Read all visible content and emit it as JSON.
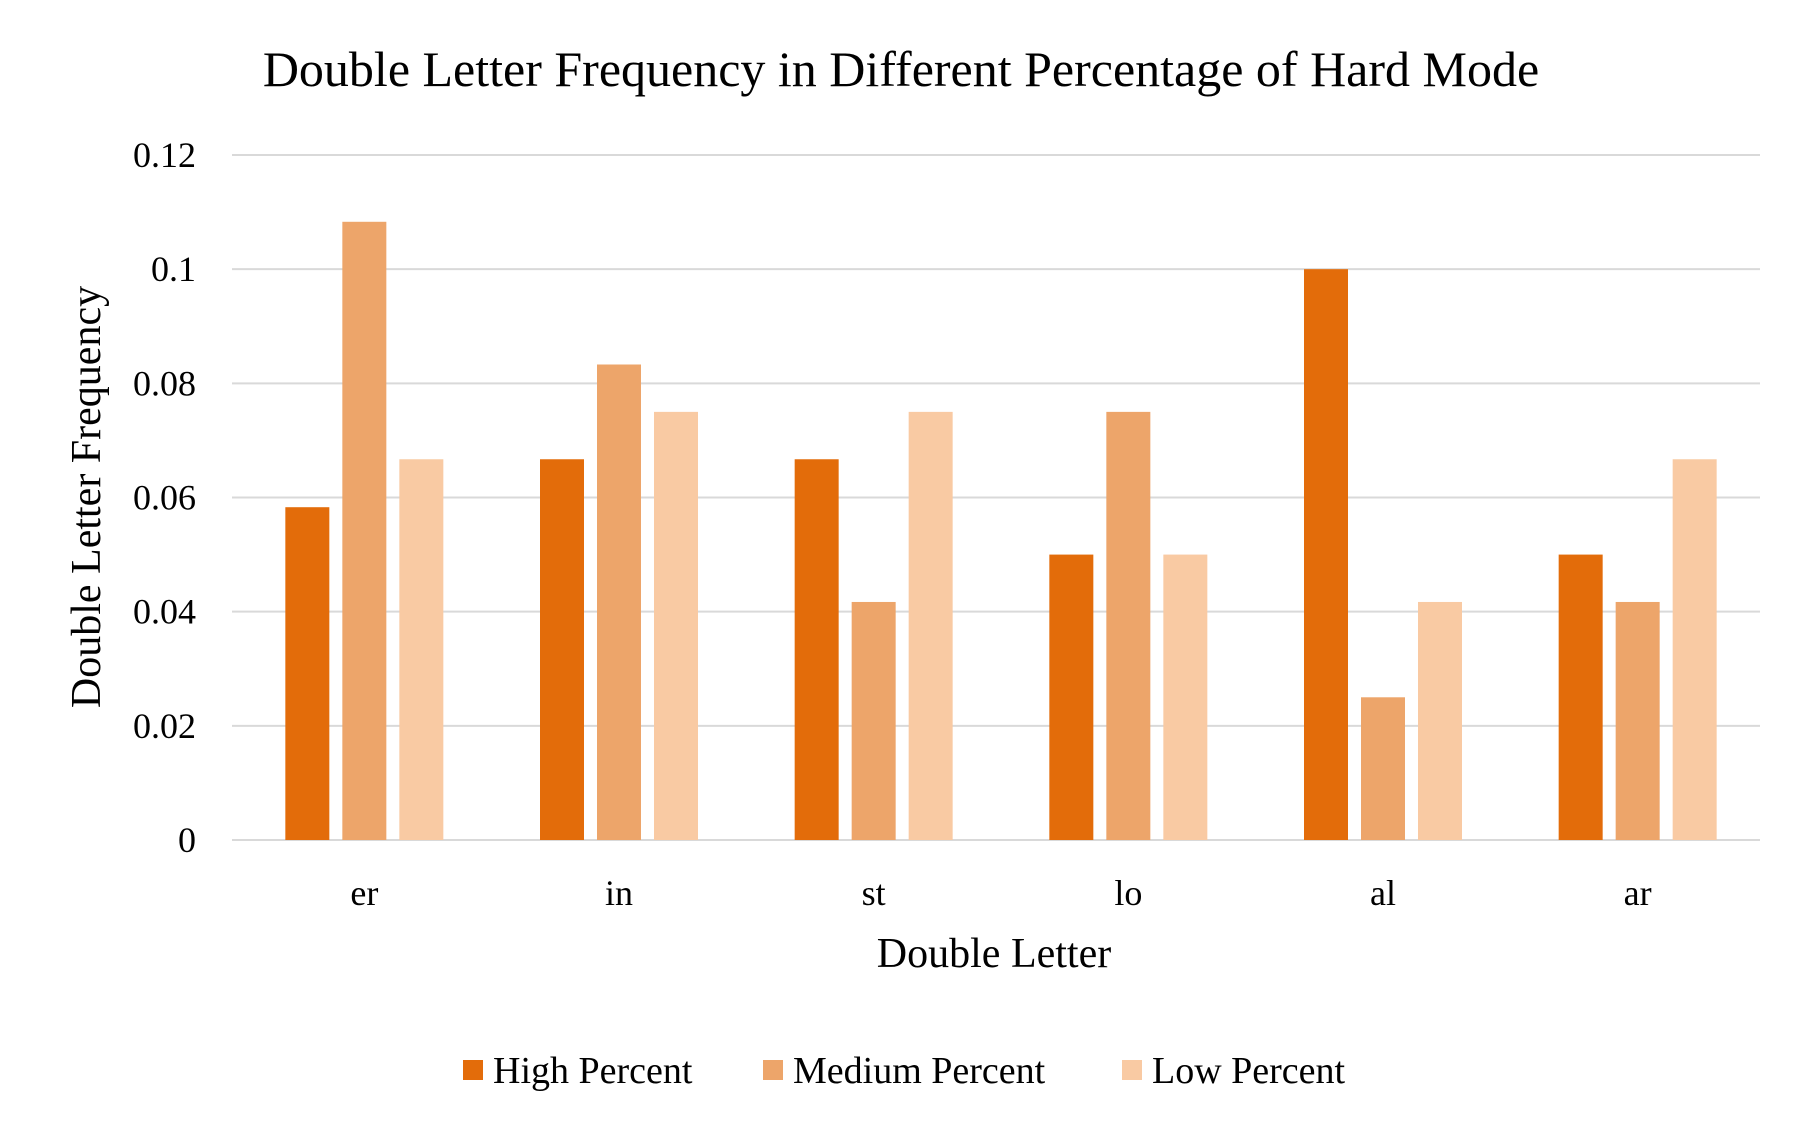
{
  "chart_data": {
    "type": "bar",
    "title": "Double Letter Frequency in Different Percentage of Hard Mode",
    "xlabel": "Double Letter",
    "ylabel": "Double Letter Frequency",
    "categories": [
      "er",
      "in",
      "st",
      "lo",
      "al",
      "ar"
    ],
    "series": [
      {
        "name": "High Percent",
        "color": "#e36c0a",
        "values": [
          0.0583,
          0.0667,
          0.0667,
          0.05,
          0.1,
          0.05
        ]
      },
      {
        "name": "Medium Percent",
        "color": "#eda56a",
        "values": [
          0.1083,
          0.0833,
          0.0417,
          0.075,
          0.025,
          0.0417
        ]
      },
      {
        "name": "Low Percent",
        "color": "#f9caa3",
        "values": [
          0.0667,
          0.075,
          0.075,
          0.05,
          0.0417,
          0.0667
        ]
      }
    ],
    "ylim": [
      0,
      0.12
    ],
    "yticks": [
      "0",
      "0.02",
      "0.04",
      "0.06",
      "0.08",
      "0.1",
      "0.12"
    ],
    "ytick_values": [
      0,
      0.02,
      0.04,
      0.06,
      0.08,
      0.1,
      0.12
    ],
    "grid": true,
    "legend_position": "bottom"
  }
}
